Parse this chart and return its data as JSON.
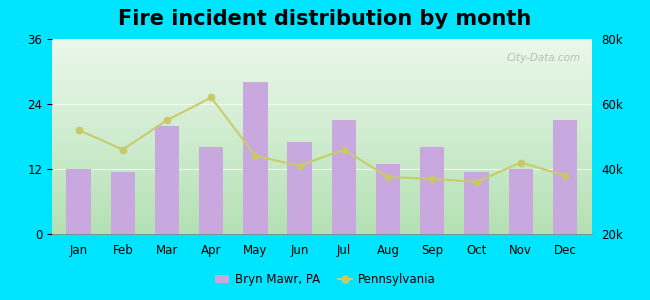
{
  "title": "Fire incident distribution by month",
  "months": [
    "Jan",
    "Feb",
    "Mar",
    "Apr",
    "May",
    "Jun",
    "Jul",
    "Aug",
    "Sep",
    "Oct",
    "Nov",
    "Dec"
  ],
  "bar_values": [
    12,
    11.5,
    20,
    16,
    28,
    17,
    21,
    13,
    16,
    11.5,
    12,
    21
  ],
  "line_values": [
    52000,
    46000,
    55000,
    62000,
    44000,
    41000,
    46000,
    37500,
    37000,
    36000,
    42000,
    38000
  ],
  "bar_color": "#c9a8e0",
  "line_color": "#c8cc6a",
  "line_marker_color": "#c8c86a",
  "bg_outer": "#00e5ff",
  "bg_plot_grad_top": "#f0f8f0",
  "bg_plot_grad_bottom": "#b8e8b8",
  "ylim_left": [
    0,
    36
  ],
  "ylim_right": [
    20000,
    80000
  ],
  "yticks_left": [
    0,
    12,
    24,
    36
  ],
  "yticks_right": [
    20000,
    40000,
    60000,
    80000
  ],
  "title_fontsize": 15,
  "watermark": "City-Data.com",
  "legend_label_bar": "Bryn Mawr, PA",
  "legend_label_line": "Pennsylvania"
}
